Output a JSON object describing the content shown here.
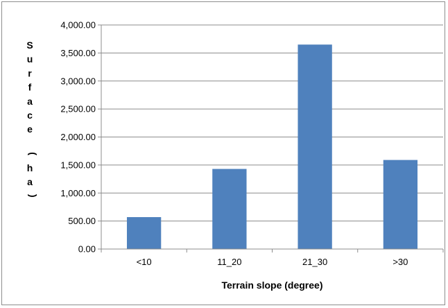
{
  "chart_data": {
    "type": "bar",
    "categories": [
      "<10",
      "11_20",
      "21_30",
      ">30"
    ],
    "series": [
      {
        "values": [
          570,
          1430,
          3650,
          1590
        ],
        "color": "#4f81bd"
      }
    ],
    "xlabel": "Terrain slope (degree)",
    "ylabel": "Surface (ha)",
    "ylim": [
      0,
      4000
    ],
    "yticks": [
      0,
      500,
      1000,
      1500,
      2000,
      2500,
      3000,
      3500,
      4000
    ],
    "ytick_labels": [
      "0.00",
      "500.00",
      "1,000.00",
      "1,500.00",
      "2,000.00",
      "2,500.00",
      "3,000.00",
      "3,500.00",
      "4,000.00"
    ],
    "grid": true,
    "legend": false
  }
}
